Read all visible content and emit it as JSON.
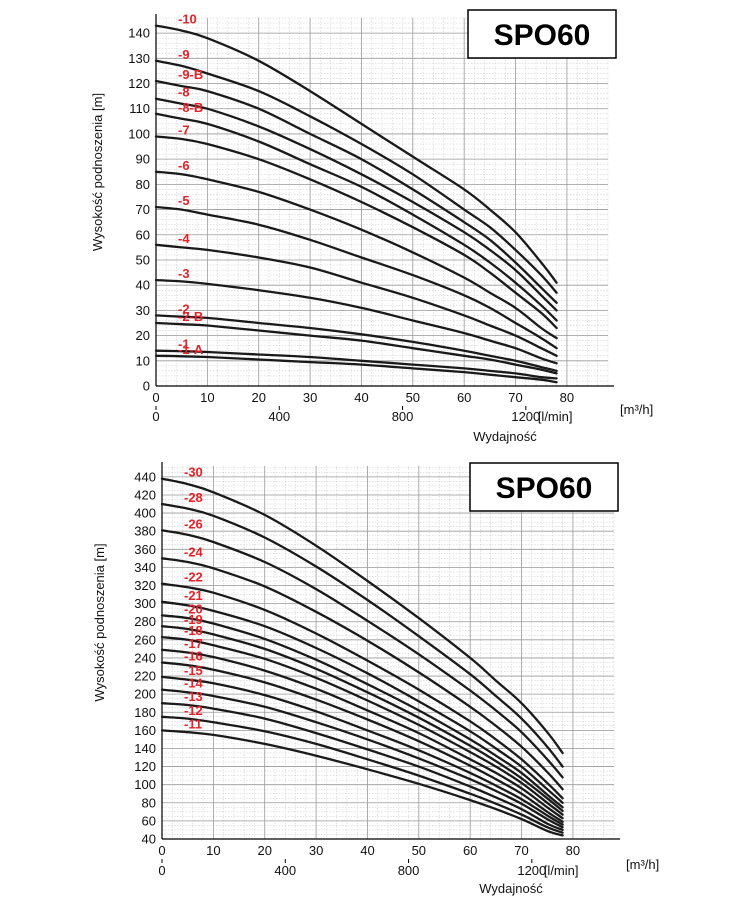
{
  "chart_data": [
    {
      "type": "line",
      "badge": "SPO60",
      "ylabel": "Wysokość podnoszenia [m]",
      "xlabel": "Wydajność",
      "x_unit_primary": "[m³/h]",
      "x_unit_secondary": "[l/min]",
      "x_ticks_primary": [
        0,
        10,
        20,
        30,
        40,
        50,
        60,
        70,
        80
      ],
      "x_ticks_secondary": [
        0,
        400,
        800,
        1200
      ],
      "y_ticks": [
        0,
        10,
        20,
        30,
        40,
        50,
        60,
        70,
        80,
        90,
        100,
        110,
        120,
        130,
        140
      ],
      "xlim": [
        0,
        88
      ],
      "ylim": [
        0,
        146
      ],
      "grid": true,
      "series": [
        {
          "name": "-10",
          "x": [
            0,
            5,
            10,
            20,
            30,
            40,
            50,
            60,
            65,
            70,
            75,
            78
          ],
          "y": [
            143,
            141,
            138,
            129,
            117,
            104,
            91,
            78,
            70,
            61,
            49,
            41
          ]
        },
        {
          "name": "-9",
          "x": [
            0,
            5,
            10,
            20,
            30,
            40,
            50,
            60,
            65,
            70,
            75,
            78
          ],
          "y": [
            129,
            127,
            124,
            117,
            107,
            96,
            84,
            70,
            63,
            54,
            44,
            37
          ]
        },
        {
          "name": "-9-B",
          "x": [
            0,
            5,
            10,
            20,
            30,
            40,
            50,
            60,
            65,
            70,
            75,
            78
          ],
          "y": [
            121,
            119,
            117,
            110,
            100,
            90,
            78,
            65,
            58,
            49,
            39,
            33
          ]
        },
        {
          "name": "-8",
          "x": [
            0,
            5,
            10,
            20,
            30,
            40,
            50,
            60,
            65,
            70,
            75,
            78
          ],
          "y": [
            114,
            112,
            110,
            103,
            94,
            84,
            73,
            61,
            54,
            46,
            36,
            30
          ]
        },
        {
          "name": "-8-B",
          "x": [
            0,
            5,
            10,
            20,
            30,
            40,
            50,
            60,
            65,
            70,
            75,
            78
          ],
          "y": [
            108,
            106,
            104,
            97,
            88,
            79,
            68,
            56,
            49,
            41,
            32,
            26
          ]
        },
        {
          "name": "-7",
          "x": [
            0,
            5,
            10,
            20,
            30,
            40,
            50,
            60,
            65,
            70,
            75,
            78
          ],
          "y": [
            99,
            98,
            96,
            90,
            82,
            73,
            63,
            52,
            45,
            37,
            29,
            23
          ]
        },
        {
          "name": "-6",
          "x": [
            0,
            5,
            10,
            20,
            30,
            40,
            50,
            60,
            65,
            70,
            75,
            78
          ],
          "y": [
            85,
            84,
            82,
            77,
            70,
            62,
            53,
            43,
            37,
            31,
            23,
            19
          ]
        },
        {
          "name": "-5",
          "x": [
            0,
            5,
            10,
            20,
            30,
            40,
            50,
            60,
            65,
            70,
            75,
            78
          ],
          "y": [
            71,
            70,
            68,
            64,
            58,
            51,
            44,
            36,
            31,
            25,
            19,
            15
          ]
        },
        {
          "name": "-4",
          "x": [
            0,
            5,
            10,
            20,
            30,
            40,
            50,
            60,
            65,
            70,
            75,
            78
          ],
          "y": [
            56,
            55,
            54,
            51,
            47,
            41,
            35,
            28,
            24,
            20,
            15,
            12
          ]
        },
        {
          "name": "-3",
          "x": [
            0,
            5,
            10,
            20,
            30,
            40,
            50,
            60,
            65,
            70,
            75,
            78
          ],
          "y": [
            42,
            41.5,
            40.5,
            38,
            35,
            31,
            26,
            21,
            18,
            15,
            11,
            9
          ]
        },
        {
          "name": "-2",
          "x": [
            0,
            5,
            10,
            20,
            30,
            40,
            50,
            60,
            65,
            70,
            75,
            78
          ],
          "y": [
            28,
            27.5,
            27,
            25,
            23,
            20.5,
            17.5,
            14,
            12,
            10,
            7.5,
            6
          ]
        },
        {
          "name": "-2-B",
          "x": [
            0,
            5,
            10,
            20,
            30,
            40,
            50,
            60,
            65,
            70,
            75,
            78
          ],
          "y": [
            25,
            24.5,
            24,
            22,
            20,
            18,
            15,
            12,
            10.5,
            8.5,
            6.5,
            5
          ]
        },
        {
          "name": "-1",
          "x": [
            0,
            5,
            10,
            20,
            30,
            40,
            50,
            60,
            65,
            70,
            75,
            78
          ],
          "y": [
            14,
            13.8,
            13.5,
            12.5,
            11.5,
            10,
            8.5,
            7,
            6,
            5,
            3.5,
            3
          ]
        },
        {
          "name": "-1-A",
          "x": [
            0,
            5,
            10,
            20,
            30,
            40,
            50,
            60,
            65,
            70,
            75,
            78
          ],
          "y": [
            12,
            11.8,
            11.5,
            10.5,
            9.5,
            8.5,
            7,
            5.5,
            4.5,
            3.5,
            2.5,
            1.5
          ]
        }
      ]
    },
    {
      "type": "line",
      "badge": "SPO60",
      "ylabel": "Wysokość podnoszenia [m]",
      "xlabel": "Wydajność",
      "x_unit_primary": "[m³/h]",
      "x_unit_secondary": "[l/min]",
      "x_ticks_primary": [
        0,
        10,
        20,
        30,
        40,
        50,
        60,
        70,
        80
      ],
      "x_ticks_secondary": [
        0,
        400,
        800,
        1200
      ],
      "y_ticks": [
        40,
        60,
        80,
        100,
        120,
        140,
        160,
        180,
        200,
        220,
        240,
        260,
        280,
        300,
        320,
        340,
        360,
        380,
        400,
        420,
        440
      ],
      "xlim": [
        0,
        88
      ],
      "ylim": [
        40,
        452
      ],
      "grid": true,
      "series": [
        {
          "name": "-30",
          "x": [
            0,
            5,
            10,
            20,
            30,
            40,
            50,
            60,
            65,
            70,
            75,
            78
          ],
          "y": [
            438,
            432,
            423,
            398,
            364,
            325,
            284,
            240,
            215,
            190,
            158,
            135
          ]
        },
        {
          "name": "-28",
          "x": [
            0,
            5,
            10,
            20,
            30,
            40,
            50,
            60,
            65,
            70,
            75,
            78
          ],
          "y": [
            410,
            405,
            397,
            373,
            341,
            304,
            264,
            222,
            198,
            173,
            142,
            120
          ]
        },
        {
          "name": "-26",
          "x": [
            0,
            5,
            10,
            20,
            30,
            40,
            50,
            60,
            65,
            70,
            75,
            78
          ],
          "y": [
            381,
            376,
            368,
            346,
            316,
            281,
            244,
            204,
            182,
            158,
            128,
            108
          ]
        },
        {
          "name": "-24",
          "x": [
            0,
            5,
            10,
            20,
            30,
            40,
            50,
            60,
            65,
            70,
            75,
            78
          ],
          "y": [
            350,
            346,
            339,
            319,
            291,
            259,
            224,
            186,
            165,
            142,
            114,
            95
          ]
        },
        {
          "name": "-22",
          "x": [
            0,
            5,
            10,
            20,
            30,
            40,
            50,
            60,
            65,
            70,
            75,
            78
          ],
          "y": [
            322,
            318,
            312,
            293,
            267,
            237,
            205,
            170,
            150,
            128,
            102,
            85
          ]
        },
        {
          "name": "-21",
          "x": [
            0,
            5,
            10,
            20,
            30,
            40,
            50,
            60,
            65,
            70,
            75,
            78
          ],
          "y": [
            302,
            298,
            292,
            275,
            251,
            223,
            192,
            159,
            140,
            120,
            95,
            80
          ]
        },
        {
          "name": "-20",
          "x": [
            0,
            5,
            10,
            20,
            30,
            40,
            50,
            60,
            65,
            70,
            75,
            78
          ],
          "y": [
            287,
            284,
            278,
            261,
            238,
            211,
            182,
            150,
            132,
            113,
            89,
            75
          ]
        },
        {
          "name": "-19",
          "x": [
            0,
            5,
            10,
            20,
            30,
            40,
            50,
            60,
            65,
            70,
            75,
            78
          ],
          "y": [
            275,
            272,
            266,
            250,
            228,
            202,
            174,
            143,
            126,
            107,
            85,
            71
          ]
        },
        {
          "name": "-18",
          "x": [
            0,
            5,
            10,
            20,
            30,
            40,
            50,
            60,
            65,
            70,
            75,
            78
          ],
          "y": [
            263,
            260,
            254,
            239,
            218,
            193,
            166,
            136,
            120,
            102,
            80,
            67
          ]
        },
        {
          "name": "-17",
          "x": [
            0,
            5,
            10,
            20,
            30,
            40,
            50,
            60,
            65,
            70,
            75,
            78
          ],
          "y": [
            249,
            246,
            241,
            226,
            206,
            182,
            157,
            128,
            113,
            96,
            75,
            63
          ]
        },
        {
          "name": "-16",
          "x": [
            0,
            5,
            10,
            20,
            30,
            40,
            50,
            60,
            65,
            70,
            75,
            78
          ],
          "y": [
            235,
            232,
            227,
            213,
            194,
            172,
            148,
            121,
            106,
            90,
            70,
            59
          ]
        },
        {
          "name": "-15",
          "x": [
            0,
            5,
            10,
            20,
            30,
            40,
            50,
            60,
            65,
            70,
            75,
            78
          ],
          "y": [
            219,
            216,
            212,
            199,
            181,
            160,
            138,
            113,
            99,
            84,
            66,
            56
          ]
        },
        {
          "name": "-14",
          "x": [
            0,
            5,
            10,
            20,
            30,
            40,
            50,
            60,
            65,
            70,
            75,
            78
          ],
          "y": [
            205,
            202,
            198,
            186,
            169,
            150,
            129,
            106,
            93,
            79,
            62,
            53
          ]
        },
        {
          "name": "-13",
          "x": [
            0,
            5,
            10,
            20,
            30,
            40,
            50,
            60,
            65,
            70,
            75,
            78
          ],
          "y": [
            190,
            188,
            184,
            173,
            157,
            139,
            120,
            98,
            86,
            73,
            57,
            50
          ]
        },
        {
          "name": "-12",
          "x": [
            0,
            5,
            10,
            20,
            30,
            40,
            50,
            60,
            65,
            70,
            75,
            78
          ],
          "y": [
            175,
            173,
            169,
            159,
            145,
            128,
            110,
            90,
            79,
            67,
            53,
            47
          ]
        },
        {
          "name": "-11",
          "x": [
            0,
            5,
            10,
            20,
            30,
            40,
            50,
            60,
            65,
            70,
            75,
            78
          ],
          "y": [
            160,
            158,
            155,
            145,
            132,
            117,
            101,
            83,
            73,
            62,
            49,
            44
          ]
        }
      ]
    }
  ]
}
